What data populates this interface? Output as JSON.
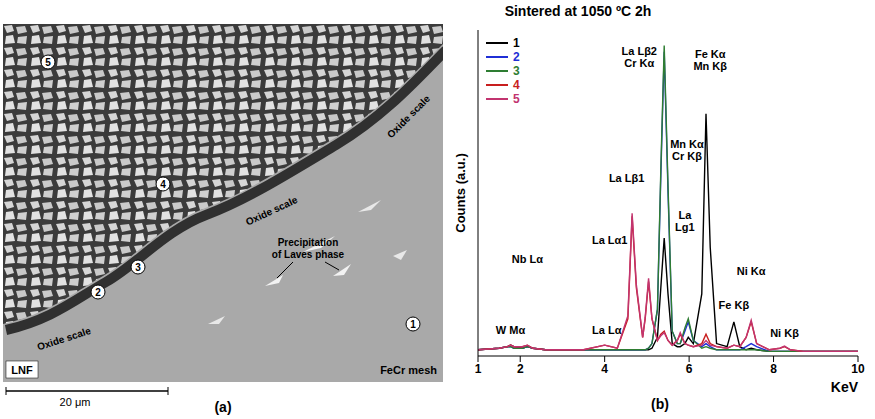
{
  "title": "Sintered at 1050 ºC 2h",
  "micrograph": {
    "label": "(a)",
    "region_labels": [
      "LNF",
      "FeCr mesh"
    ],
    "oxide_scale_labels": [
      "Oxide scale",
      "Oxide scale",
      "Oxide scale"
    ],
    "annotation": "Precipitation of Laves phase",
    "point_labels": [
      "1",
      "2",
      "3",
      "4",
      "5"
    ],
    "scale_bar": "20 μm"
  },
  "chart_data": {
    "type": "line",
    "label": "(b)",
    "y_label": "Counts (a.u.)",
    "x_label": "KeV",
    "x": [
      1.0,
      1.5,
      1.7,
      1.77,
      1.85,
      2.05,
      2.17,
      2.3,
      2.6,
      3.0,
      3.5,
      4.0,
      4.3,
      4.55,
      4.65,
      4.75,
      4.9,
      4.96,
      5.04,
      5.12,
      5.25,
      5.33,
      5.41,
      5.5,
      5.6,
      5.72,
      5.79,
      5.9,
      5.98,
      6.1,
      6.3,
      6.4,
      6.5,
      6.65,
      6.9,
      7.06,
      7.2,
      7.35,
      7.47,
      7.6,
      7.9,
      8.15,
      8.26,
      8.4,
      8.7,
      9.2,
      10.0
    ],
    "xlim": [
      1,
      10
    ],
    "xticks": [
      1,
      2,
      4,
      6,
      8,
      10
    ],
    "ylim": [
      0,
      105
    ],
    "tick_labels": "x",
    "grid": false,
    "legend": "upper left",
    "series": [
      {
        "name": "1",
        "color": "#000000",
        "values": [
          2,
          2.5,
          3,
          3.5,
          3,
          2.5,
          3,
          2.5,
          2,
          2,
          2,
          2,
          2,
          2,
          2,
          2,
          2,
          2,
          2,
          2.5,
          6,
          22,
          38,
          20,
          4,
          3,
          3,
          4,
          6,
          4,
          20,
          78,
          35,
          4,
          3,
          11,
          3,
          2,
          2.5,
          2,
          1.5,
          1.5,
          1.5,
          1.5,
          1.5,
          1.5,
          1.5
        ]
      },
      {
        "name": "2",
        "color": "#1f2fd6",
        "values": [
          2,
          2.5,
          3,
          3,
          2.5,
          2.5,
          3,
          2.5,
          2,
          2,
          2,
          2,
          2,
          2,
          2,
          2,
          2,
          2,
          2.5,
          4,
          15,
          58,
          98,
          53,
          8,
          4,
          4,
          8,
          11,
          5,
          3,
          4,
          3,
          2,
          2,
          2,
          2,
          3,
          4,
          3,
          1.5,
          1.5,
          1.5,
          1.5,
          1.5,
          1.5,
          1.5
        ]
      },
      {
        "name": "3",
        "color": "#2e7d32",
        "values": [
          2,
          2.5,
          3,
          3,
          2.5,
          2.5,
          3,
          2.5,
          2,
          2,
          2,
          2,
          2,
          2,
          2,
          2,
          2,
          2,
          2.5,
          4,
          15,
          60,
          100,
          55,
          8,
          4,
          4,
          9,
          12,
          5,
          2.5,
          3,
          2.5,
          2,
          2,
          2,
          2,
          2,
          2,
          2,
          1.5,
          1.5,
          1.5,
          1.5,
          1.5,
          1.5,
          1.5
        ]
      },
      {
        "name": "4",
        "color": "#c81e1e",
        "values": [
          2,
          2.5,
          3,
          3.5,
          3,
          3,
          3.5,
          2.5,
          2,
          2,
          2,
          3.5,
          2.5,
          12,
          45,
          22,
          6,
          12,
          24,
          12,
          5,
          7,
          8,
          5,
          3.5,
          5,
          7,
          4,
          3.5,
          3,
          4,
          7,
          4,
          3,
          2.5,
          3.5,
          3,
          6,
          11,
          4,
          2,
          2.5,
          3,
          2,
          1.5,
          1.5,
          1.5
        ]
      },
      {
        "name": "5",
        "color": "#c2346f",
        "values": [
          2,
          2.5,
          3,
          3.5,
          3,
          3,
          3.5,
          2.5,
          2,
          2,
          2,
          3.5,
          2.5,
          13,
          46,
          23,
          6,
          12.5,
          25,
          12,
          5,
          6.5,
          7.5,
          5,
          3.5,
          5,
          7.5,
          4,
          3.5,
          3,
          3.5,
          5,
          3.5,
          3,
          2.5,
          3.5,
          3,
          6,
          11.5,
          4,
          2,
          2.5,
          3.2,
          2,
          1.5,
          1.5,
          1.5
        ]
      }
    ],
    "annotations": [
      {
        "lines": [
          "W Mα"
        ],
        "x": 1.77,
        "y": 7
      },
      {
        "lines": [
          "Nb Lα"
        ],
        "x": 2.17,
        "y": 30
      },
      {
        "lines": [
          "La Lα"
        ],
        "x": 4.05,
        "y": 7
      },
      {
        "lines": [
          "La Lα1"
        ],
        "x": 4.12,
        "y": 36
      },
      {
        "lines": [
          "La Lβ1"
        ],
        "x": 4.52,
        "y": 56
      },
      {
        "lines": [
          "La Lβ2",
          "Cr Kα"
        ],
        "x": 4.82,
        "y": 97
      },
      {
        "lines": [
          "Fe Kα",
          "Mn Kβ"
        ],
        "x": 6.5,
        "y": 96
      },
      {
        "lines": [
          "Mn Kα",
          "Cr Kβ"
        ],
        "x": 5.95,
        "y": 67
      },
      {
        "lines": [
          "La",
          "Lg1"
        ],
        "x": 5.9,
        "y": 44
      },
      {
        "lines": [
          "Fe Kβ"
        ],
        "x": 7.06,
        "y": 15
      },
      {
        "lines": [
          "Ni Kα"
        ],
        "x": 7.47,
        "y": 26
      },
      {
        "lines": [
          "Ni Kβ"
        ],
        "x": 8.26,
        "y": 6
      }
    ]
  }
}
